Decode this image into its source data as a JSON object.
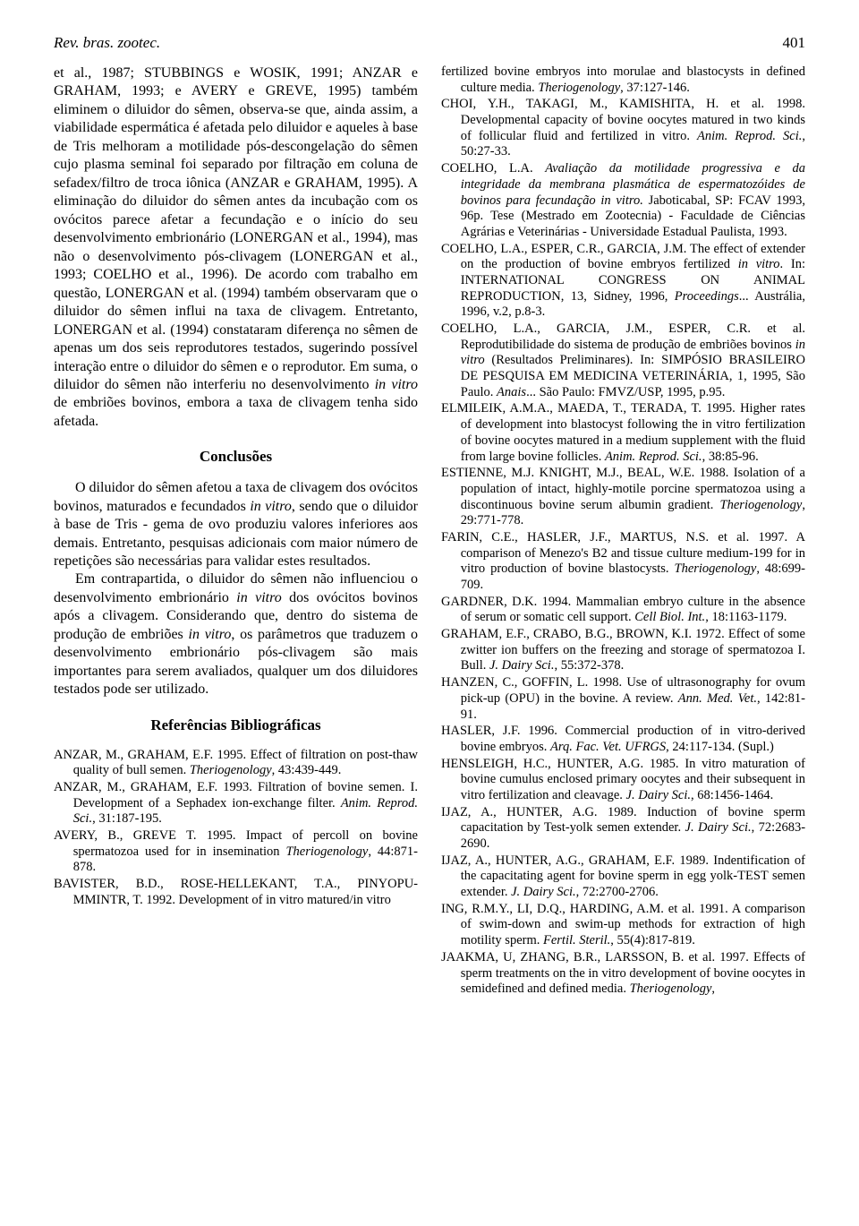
{
  "header": {
    "journal": "Rev. bras. zootec.",
    "page": "401"
  },
  "left": {
    "p1": "et al., 1987; STUBBINGS e WOSIK, 1991; ANZAR e GRAHAM, 1993; e AVERY e GREVE, 1995) também eliminem o diluidor do sêmen, observa-se que, ainda assim, a viabilidade espermática é afetada pelo diluidor e aqueles à base de Tris melhoram a motilidade pós-descongelação do sêmen cujo plasma seminal foi separado por filtração em coluna de sefadex/filtro de troca iônica (ANZAR e GRAHAM, 1995). A eliminação do diluidor do sêmen antes da incubação com os ovócitos parece afetar a fecundação e o início do seu desenvolvimento embrionário (LONERGAN et al., 1994), mas não o desenvolvimento pós-clivagem (LONERGAN et al., 1993; COELHO et al., 1996). De acordo com trabalho em questão, LONERGAN et al. (1994) também observaram que o diluidor do sêmen influi na taxa de clivagem. Entretanto, LONERGAN et al. (1994) constataram diferença no sêmen de apenas um dos seis reprodutores testados, sugerindo possível interação entre o diluidor do sêmen e o reprodutor. Em suma, o diluidor do sêmen não interferiu no desenvolvimento ",
    "p1_it1": "in vitro",
    "p1_b": " de embriões bovinos, embora a taxa de clivagem tenha sido afetada.",
    "h_conclusoes": "Conclusões",
    "p2_a": "O diluidor do sêmen afetou a taxa de clivagem dos ovócitos bovinos, maturados e fecundados ",
    "p2_it": "in vitro",
    "p2_b": ", sendo que o diluidor à base de Tris - gema de ovo produziu valores inferiores aos demais. Entretanto, pesquisas adicionais com maior número de repetições são necessárias para validar estes resultados.",
    "p3_a": "Em contrapartida, o diluidor do sêmen não influenciou o desenvolvimento embrionário ",
    "p3_it1": "in vitro",
    "p3_b": " dos ovócitos bovinos após a clivagem. Considerando que, dentro do sistema de produção de embriões ",
    "p3_it2": "in vitro",
    "p3_c": ", os parâmetros que traduzem o desenvolvimento embrionário pós-clivagem são mais importantes para serem avaliados, qualquer um dos diluidores testados pode ser utilizado.",
    "h_refs": "Referências Bibliográficas",
    "refs": [
      {
        "a": "ANZAR, M., GRAHAM, E.F. 1995. Effect of filtration on post-thaw quality of bull semen. ",
        "i": "Theriogenology",
        "b": ", 43:439-449."
      },
      {
        "a": "ANZAR, M., GRAHAM, E.F. 1993. Filtration of bovine semen. I. Development of a Sephadex ion-exchange filter. ",
        "i": "Anim. Reprod. Sci.",
        "b": ", 31:187-195."
      },
      {
        "a": "AVERY, B., GREVE T. 1995. Impact of percoll on bovine spermatozoa used for in insemination ",
        "i": "Theriogenology",
        "b": ", 44:871-878."
      },
      {
        "a": "BAVISTER, B.D., ROSE-HELLEKANT, T.A., PINYOPU-MMINTR, T. 1992. Development of in vitro matured/in vitro",
        "i": "",
        "b": ""
      }
    ]
  },
  "right": {
    "cont_a": "fertilized bovine embryos into morulae and blastocysts in defined culture media. ",
    "cont_i": "Theriogenology",
    "cont_b": ", 37:127-146.",
    "refs": [
      {
        "a": "CHOI, Y.H., TAKAGI, M., KAMISHITA, H. et al. 1998. Developmental capacity of bovine oocytes matured in two kinds of follicular fluid and fertilized in vitro. ",
        "i": "Anim. Reprod. Sci.",
        "b": ", 50:27-33."
      },
      {
        "a": "COELHO, L.A. ",
        "i": "Avaliação da motilidade progressiva e da integridade da membrana plasmática de espermatozóides de bovinos para fecundação in vitro.",
        "b": " Jaboticabal, SP: FCAV 1993, 96p. Tese (Mestrado em Zootecnia) - Faculdade de Ciências Agrárias e Veterinárias - Universidade Estadual Paulista, 1993."
      },
      {
        "a": "COELHO, L.A., ESPER, C.R., GARCIA, J.M. The effect of extender on the production of bovine embryos fertilized ",
        "i": "in vitro",
        "b": ". In: INTERNATIONAL CONGRESS ON ANIMAL REPRODUCTION, 13, Sidney, 1996, ",
        "i2": "Proceedings",
        "c": "... Austrália, 1996, v.2, p.8-3."
      },
      {
        "a": "COELHO, L.A., GARCIA, J.M., ESPER, C.R. et al. Reprodutibilidade do sistema de produção de embriões bovinos ",
        "i": "in vitro",
        "b": " (Resultados Preliminares). In: SIMPÓSIO BRASILEIRO DE PESQUISA EM MEDICINA VETERINÁRIA, 1, 1995, São Paulo. ",
        "i2": "Anais",
        "c": "... São Paulo: FMVZ/USP, 1995, p.95."
      },
      {
        "a": "ELMILEIK, A.M.A., MAEDA, T., TERADA, T. 1995. Higher rates of development into blastocyst following the in vitro fertilization of bovine oocytes matured in a medium supplement with the fluid from large bovine follicles. ",
        "i": "Anim. Reprod. Sci.",
        "b": ", 38:85-96."
      },
      {
        "a": "ESTIENNE, M.J. KNIGHT, M.J., BEAL, W.E. 1988. Isolation of a population of intact, highly-motile porcine spermatozoa using a discontinuous bovine serum albumin gradient. ",
        "i": "Theriogenology",
        "b": ", 29:771-778."
      },
      {
        "a": "FARIN, C.E., HASLER, J.F., MARTUS, N.S. et al. 1997. A comparison of Menezo's B2 and tissue culture medium-199 for in vitro production of bovine blastocysts. ",
        "i": "Theriogenology",
        "b": ", 48:699-709."
      },
      {
        "a": "GARDNER, D.K. 1994. Mammalian embryo culture in the absence of serum or somatic cell support. ",
        "i": "Cell Biol. Int.",
        "b": ", 18:1163-1179."
      },
      {
        "a": "GRAHAM, E.F., CRABO, B.G., BROWN, K.I. 1972. Effect of some zwitter ion buffers on the freezing and storage of spermatozoa I. Bull. ",
        "i": "J. Dairy Sci.",
        "b": ", 55:372-378."
      },
      {
        "a": "HANZEN, C., GOFFIN, L. 1998. Use of ultrasonography for ovum pick-up (OPU) in the bovine. A review. ",
        "i": "Ann. Med. Vet.",
        "b": ", 142:81-91."
      },
      {
        "a": "HASLER, J.F. 1996. Commercial production of in vitro-derived bovine embryos. ",
        "i": "Arq. Fac. Vet. UFRGS",
        "b": ", 24:117-134. (Supl.)"
      },
      {
        "a": "HENSLEIGH, H.C., HUNTER, A.G. 1985. In vitro maturation of bovine cumulus enclosed primary oocytes and their subsequent in vitro fertilization and cleavage. ",
        "i": "J. Dairy Sci.",
        "b": ", 68:1456-1464."
      },
      {
        "a": "IJAZ, A., HUNTER, A.G. 1989. Induction of bovine sperm capacitation by Test-yolk semen extender. ",
        "i": "J. Dairy Sci.",
        "b": ", 72:2683-2690."
      },
      {
        "a": "IJAZ, A., HUNTER, A.G., GRAHAM, E.F. 1989. Indentification of the capacitating agent for bovine sperm in egg yolk-TEST semen extender. ",
        "i": "J. Dairy Sci.",
        "b": ", 72:2700-2706."
      },
      {
        "a": "ING, R.M.Y., LI, D.Q., HARDING, A.M. et al. 1991. A comparison of swim-down and swim-up methods for extraction of high motility sperm. ",
        "i": "Fertil. Steril.",
        "b": ", 55(4):817-819."
      },
      {
        "a": "JAAKMA, U, ZHANG, B.R., LARSSON, B. et al. 1997. Effects of sperm treatments on the in vitro development of bovine oocytes in semidefined and defined media. ",
        "i": "Theriogenology",
        "b": ","
      }
    ]
  }
}
